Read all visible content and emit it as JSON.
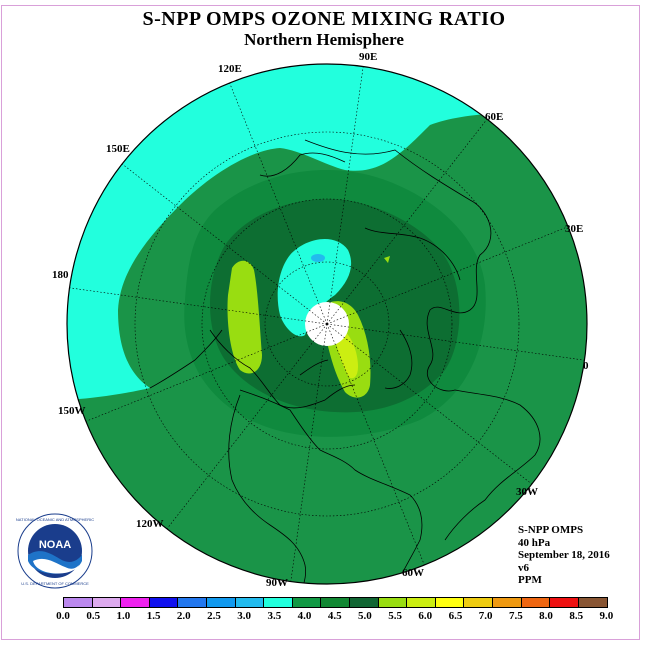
{
  "title": "S-NPP OMPS OZONE MIXING RATIO",
  "subtitle": "Northern Hemisphere",
  "longitude_labels": {
    "lon_90e": "90E",
    "lon_60e": "60E",
    "lon_30e": "30E",
    "lon_0": "0",
    "lon_30w": "30W",
    "lon_60w": "60W",
    "lon_90w": "90W",
    "lon_120w": "120W",
    "lon_150w": "150W",
    "lon_180": "180",
    "lon_150e": "150E",
    "lon_120e": "120E"
  },
  "info": {
    "instrument": "S-NPP OMPS",
    "level": "40 hPa",
    "date": "September 18, 2016",
    "version": "v6",
    "units": "PPM"
  },
  "logo_text": "NATIONAL OCEANIC AND ATMOSPHERIC ADMINISTRATION · U.S. DEPARTMENT OF COMMERCE · NOAA",
  "colorbar": {
    "ticks": [
      "0.0",
      "0.5",
      "1.0",
      "1.5",
      "2.0",
      "2.5",
      "3.0",
      "3.5",
      "4.0",
      "4.5",
      "5.0",
      "5.5",
      "6.0",
      "6.5",
      "7.0",
      "7.5",
      "8.0",
      "8.5",
      "9.0"
    ],
    "colors": [
      "#bb88ee",
      "#ddaaee",
      "#ee22ee",
      "#1111ee",
      "#2277ee",
      "#1199ee",
      "#22bbee",
      "#22ffdd",
      "#119944",
      "#118833",
      "#116633",
      "#99dd11",
      "#ccee11",
      "#ffff11",
      "#eecc11",
      "#ee9911",
      "#ee6611",
      "#ee1111",
      "#885533"
    ]
  },
  "map_colors": {
    "ocean_bg": "#1a9448",
    "c35_40": "#22ffdd",
    "c40_45": "#129a47",
    "c45_50": "#0f8a3e",
    "c50_55": "#0d6e32",
    "c55_60": "#99dd11",
    "c60_65": "#ccee11",
    "missing_pole": "#ffffff"
  }
}
